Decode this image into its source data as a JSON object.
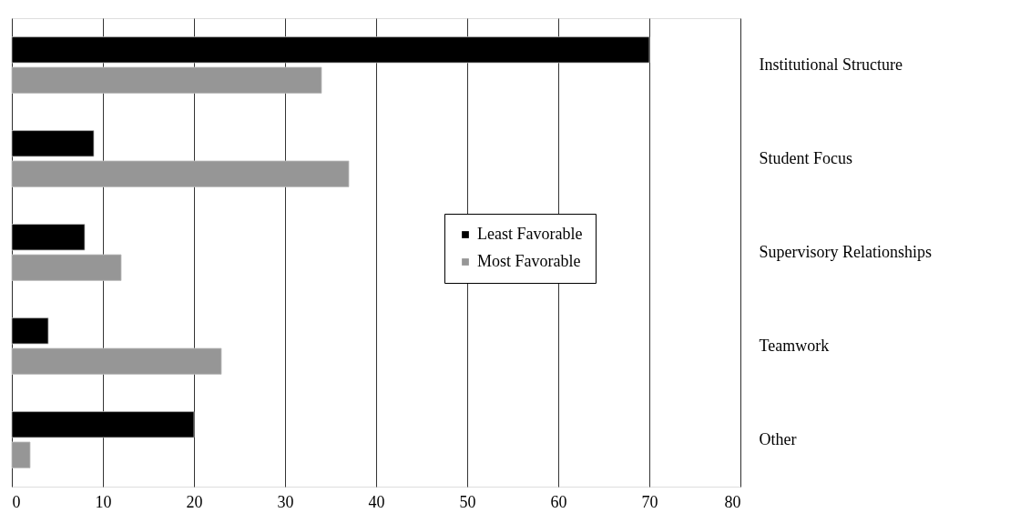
{
  "chart_data": {
    "type": "bar",
    "orientation": "horizontal",
    "categories": [
      "Institutional Structure",
      "Student Focus",
      "Supervisory Relationships",
      "Teamwork",
      "Other"
    ],
    "series": [
      {
        "name": "Least Favorable",
        "color": "#000000",
        "values": [
          70,
          9,
          8,
          4,
          20
        ]
      },
      {
        "name": "Most Favorable",
        "color": "#969696",
        "values": [
          34,
          37,
          12,
          23,
          2
        ]
      }
    ],
    "xlim": [
      0,
      80
    ],
    "xticks": [
      0,
      10,
      20,
      30,
      40,
      50,
      60,
      70,
      80
    ],
    "grid": "x",
    "legend": "right"
  }
}
